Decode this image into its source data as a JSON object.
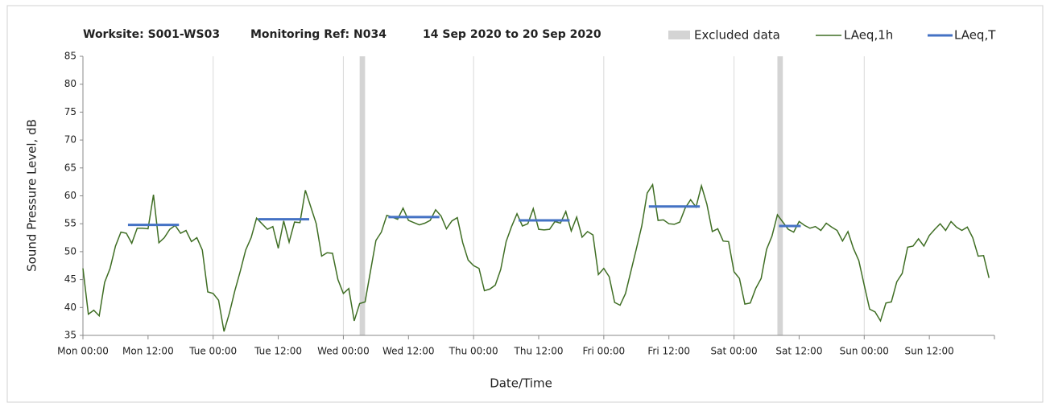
{
  "chart_data": {
    "type": "line",
    "title": [
      "Worksite: S001-WS03",
      "Monitoring Ref: N034",
      "14 Sep 2020 to 20 Sep 2020"
    ],
    "x_label": "Date/Time",
    "y_label": "Sound Pressure Level, dB",
    "xlim": [
      0,
      168
    ],
    "xticks": [
      {
        "value": 0,
        "label": "Mon 00:00"
      },
      {
        "value": 12,
        "label": "Mon 12:00"
      },
      {
        "value": 24,
        "label": "Tue 00:00"
      },
      {
        "value": 36,
        "label": "Tue 12:00"
      },
      {
        "value": 48,
        "label": "Wed 00:00"
      },
      {
        "value": 60,
        "label": "Wed 12:00"
      },
      {
        "value": 72,
        "label": "Thu 00:00"
      },
      {
        "value": 84,
        "label": "Thu 12:00"
      },
      {
        "value": 96,
        "label": "Fri 00:00"
      },
      {
        "value": 108,
        "label": "Fri 12:00"
      },
      {
        "value": 120,
        "label": "Sat 00:00"
      },
      {
        "value": 132,
        "label": "Sat 12:00"
      },
      {
        "value": 144,
        "label": "Sun 00:00"
      },
      {
        "value": 156,
        "label": "Sun 12:00"
      }
    ],
    "ylim": [
      35,
      85
    ],
    "yticks": [
      35,
      40,
      45,
      50,
      55,
      60,
      65,
      70,
      75,
      80,
      85
    ],
    "grid": true,
    "legend": "top-right",
    "excluded": {
      "name": "Excluded data",
      "color": "#d4d4d4",
      "ranges": [
        [
          51,
          52
        ],
        [
          128,
          129
        ]
      ]
    },
    "series": [
      {
        "name": "LAeq,1h",
        "color": "#3f6e24",
        "x": [
          0,
          1,
          2,
          3,
          4,
          5,
          6,
          7,
          8,
          9,
          10,
          11,
          12,
          13,
          14,
          15,
          16,
          17,
          18,
          19,
          20,
          21,
          22,
          23,
          24,
          25,
          26,
          27,
          28,
          29,
          30,
          31,
          32,
          33,
          34,
          35,
          36,
          37,
          38,
          39,
          40,
          41,
          42,
          43,
          44,
          45,
          46,
          47,
          48,
          49,
          50,
          51,
          52,
          53,
          54,
          55,
          56,
          57,
          58,
          59,
          60,
          61,
          62,
          63,
          64,
          65,
          66,
          67,
          68,
          69,
          70,
          71,
          72,
          73,
          74,
          75,
          76,
          77,
          78,
          79,
          80,
          81,
          82,
          83,
          84,
          85,
          86,
          87,
          88,
          89,
          90,
          91,
          92,
          93,
          94,
          95,
          96,
          97,
          98,
          99,
          100,
          101,
          102,
          103,
          104,
          105,
          106,
          107,
          108,
          109,
          110,
          111,
          112,
          113,
          114,
          115,
          116,
          117,
          118,
          119,
          120,
          121,
          122,
          123,
          124,
          125,
          126,
          127,
          128,
          129,
          130,
          131,
          132,
          133,
          134,
          135,
          136,
          137,
          138,
          139,
          140,
          141,
          142,
          143,
          144,
          145,
          146,
          147,
          148,
          149,
          150,
          151,
          152,
          153,
          154,
          155,
          156,
          157,
          158,
          159,
          160,
          161,
          162,
          163,
          164,
          165,
          166,
          167
        ],
        "values": [
          47,
          38.8,
          39.5,
          38.5,
          44.5,
          47,
          51,
          53.5,
          53.3,
          51.5,
          54.2,
          54.2,
          54.1,
          60.2,
          51.6,
          52.5,
          54,
          54.7,
          53.3,
          53.8,
          51.8,
          52.5,
          50.3,
          42.8,
          42.5,
          41.3,
          35.7,
          39,
          43,
          46.5,
          50.3,
          52.5,
          56,
          55,
          54,
          54.5,
          50.6,
          55.5,
          51.7,
          55.3,
          55.2,
          61,
          58,
          55,
          49.2,
          49.8,
          49.7,
          45,
          42.5,
          43.4,
          37.6,
          40.7,
          41,
          46.5,
          52,
          53.5,
          56.5,
          56.2,
          55.8,
          57.8,
          55.6,
          55.2,
          54.8,
          55.1,
          55.6,
          57.5,
          56.4,
          54.1,
          55.5,
          56.1,
          51.6,
          48.5,
          47.5,
          47,
          43,
          43.3,
          44,
          46.8,
          51.8,
          54.5,
          56.8,
          54.6,
          55,
          57.7,
          54,
          53.9,
          54,
          55.4,
          55.1,
          57.2,
          53.7,
          56.2,
          52.6,
          53.6,
          53,
          45.9,
          47,
          45.5,
          40.9,
          40.4,
          42.5,
          46.5,
          50.5,
          54.6,
          60.5,
          62,
          55.6,
          55.7,
          55,
          54.9,
          55.3,
          57.8,
          59.3,
          58,
          61.8,
          58.5,
          53.6,
          54.1,
          51.9,
          51.8,
          46.4,
          45.2,
          40.6,
          40.8,
          43.4,
          45.2,
          50.4,
          52.8,
          56.6,
          55.3,
          54,
          53.5,
          55.4,
          54.7,
          54.2,
          54.5,
          53.8,
          55.1,
          54.4,
          53.8,
          51.9,
          53.6,
          50.6,
          48.4,
          44,
          39.7,
          39.2,
          37.6,
          40.8,
          41,
          44.6,
          46.1,
          50.8,
          51,
          52.3,
          51,
          52.9,
          54,
          55,
          53.8,
          55.4,
          54.4,
          53.8,
          54.4,
          52.5,
          49.2,
          49.3,
          45.3
        ]
      },
      {
        "name": "LAeq,T",
        "color": "#4472c4",
        "x": [
          8.3,
          17.7,
          null,
          32.3,
          41.7,
          null,
          56.3,
          65.7,
          null,
          80.3,
          89.7,
          null,
          104.3,
          113.7,
          null,
          128.3,
          132.3
        ],
        "values": [
          54.8,
          54.8,
          null,
          55.8,
          55.8,
          null,
          56.2,
          56.2,
          null,
          55.6,
          55.6,
          null,
          58.1,
          58.1,
          null,
          54.6,
          54.6
        ]
      }
    ]
  }
}
